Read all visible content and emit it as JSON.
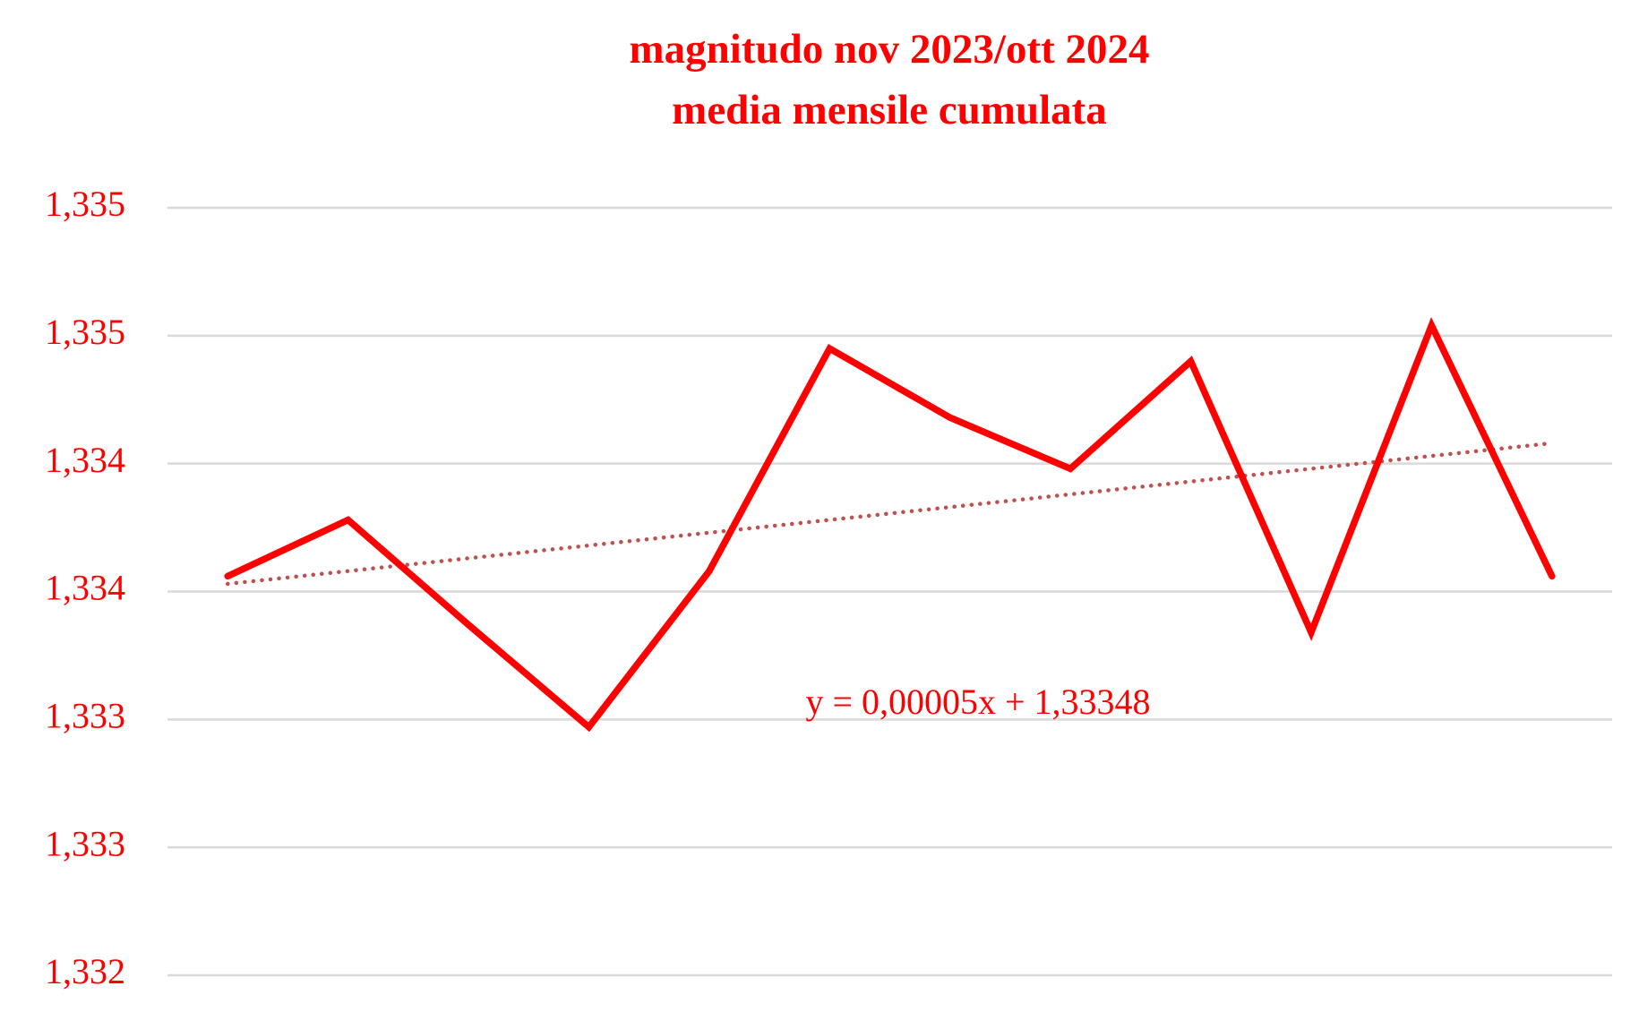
{
  "chart_data": {
    "type": "line",
    "title": "magnitudo nov 2023/ott 2024",
    "subtitle": "media mensile cumulata",
    "series": [
      {
        "color": "#ff0000",
        "values": [
          1.33356,
          1.33378,
          1.33337,
          1.33297,
          1.33358,
          1.33445,
          1.33418,
          1.33398,
          1.3344,
          1.33334,
          1.33454,
          1.33356
        ]
      }
    ],
    "trendline": {
      "label": "y = 0,00005x + 1,33348",
      "slope": 5e-05,
      "intercept": 1.33348,
      "color": "#c0504d"
    },
    "ylim": [
      1.332,
      1.335
    ],
    "yticks": [
      {
        "value": 1.332,
        "label": "1,332"
      },
      {
        "value": 1.3325,
        "label": "1,333"
      },
      {
        "value": 1.333,
        "label": "1,333"
      },
      {
        "value": 1.3335,
        "label": "1,334"
      },
      {
        "value": 1.334,
        "label": "1,334"
      },
      {
        "value": 1.3345,
        "label": "1,335"
      },
      {
        "value": 1.335,
        "label": "1,335"
      }
    ],
    "label_color": "#ff0000",
    "grid": true
  }
}
